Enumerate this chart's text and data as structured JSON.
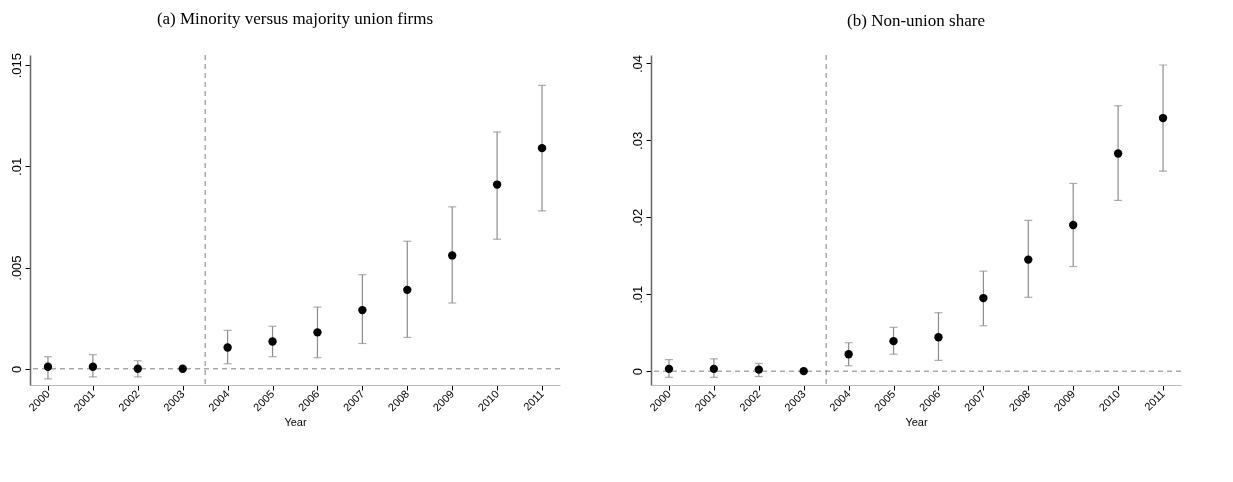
{
  "chart_data": [
    {
      "type": "scatter",
      "title": "(a) Minority versus majority union firms",
      "xlabel": "Year",
      "x": [
        2000,
        2001,
        2002,
        2003,
        2004,
        2005,
        2006,
        2007,
        2008,
        2009,
        2010,
        2011
      ],
      "series": [
        {
          "color": "#000000",
          "values": [
            0.0001,
            0.0001,
            0,
            0,
            0.00105,
            0.00135,
            0.0018,
            0.0029,
            0.0039,
            0.0056,
            0.0091,
            0.0109
          ],
          "errors": [
            [
              -0.0005,
              0.0006
            ],
            [
              -0.0004,
              0.0007
            ],
            [
              -0.0004,
              0.0004
            ],
            null,
            [
              0.00025,
              0.0019
            ],
            [
              0.0006,
              0.0021
            ],
            [
              0.00055,
              0.00305
            ],
            [
              0.00125,
              0.00465
            ],
            [
              0.00155,
              0.0063
            ],
            [
              0.00325,
              0.008
            ],
            [
              0.0064,
              0.0117
            ],
            [
              0.0078,
              0.014
            ]
          ]
        }
      ],
      "xlim": [
        1999.6,
        2011.4
      ],
      "xticks": [
        2000,
        2001,
        2002,
        2003,
        2004,
        2005,
        2006,
        2007,
        2008,
        2009,
        2010,
        2011
      ],
      "ylim": [
        -0.0008,
        0.0155
      ],
      "yticks": [
        0,
        {
          "value": 0.005,
          "label": ".005"
        },
        {
          "value": 0.01,
          "label": ".01"
        },
        {
          "value": 0.015,
          "label": ".015"
        }
      ],
      "marker": "circle",
      "ref_lines": [
        {
          "axis": "x",
          "value": 2003.5,
          "color": "#808080",
          "line_style": "dashed"
        },
        {
          "axis": "y",
          "value": 0,
          "color": "#808080",
          "line_style": "dashed"
        }
      ]
    },
    {
      "type": "scatter",
      "title": "(b) Non-union share",
      "xlabel": "Year",
      "x": [
        2000,
        2001,
        2002,
        2003,
        2004,
        2005,
        2006,
        2007,
        2008,
        2009,
        2010,
        2011
      ],
      "series": [
        {
          "color": "#000000",
          "values": [
            0.0003,
            0.0003,
            0.0002,
            0,
            0.0022,
            0.0039,
            0.0044,
            0.0095,
            0.0145,
            0.019,
            0.0283,
            0.0329
          ],
          "errors": [
            [
              -0.0008,
              0.0015
            ],
            [
              -0.0008,
              0.0016
            ],
            [
              -0.0007,
              0.001
            ],
            null,
            [
              0.0007,
              0.0037
            ],
            [
              0.0022,
              0.0057
            ],
            [
              0.0014,
              0.0076
            ],
            [
              0.0059,
              0.013
            ],
            [
              0.0096,
              0.0196
            ],
            [
              0.0136,
              0.0244
            ],
            [
              0.0222,
              0.0345
            ],
            [
              0.026,
              0.0398
            ]
          ]
        }
      ],
      "xlim": [
        1999.6,
        2011.4
      ],
      "xticks": [
        2000,
        2001,
        2002,
        2003,
        2004,
        2005,
        2006,
        2007,
        2008,
        2009,
        2010,
        2011
      ],
      "ylim": [
        -0.0018,
        0.0411
      ],
      "yticks": [
        0,
        {
          "value": 0.01,
          "label": ".01"
        },
        {
          "value": 0.02,
          "label": ".02"
        },
        {
          "value": 0.03,
          "label": ".03"
        },
        {
          "value": 0.04,
          "label": ".04"
        }
      ],
      "marker": "circle",
      "ref_lines": [
        {
          "axis": "x",
          "value": 2003.5,
          "color": "#808080",
          "line_style": "dashed"
        },
        {
          "axis": "y",
          "value": 0,
          "color": "#808080",
          "line_style": "dashed"
        }
      ]
    }
  ]
}
